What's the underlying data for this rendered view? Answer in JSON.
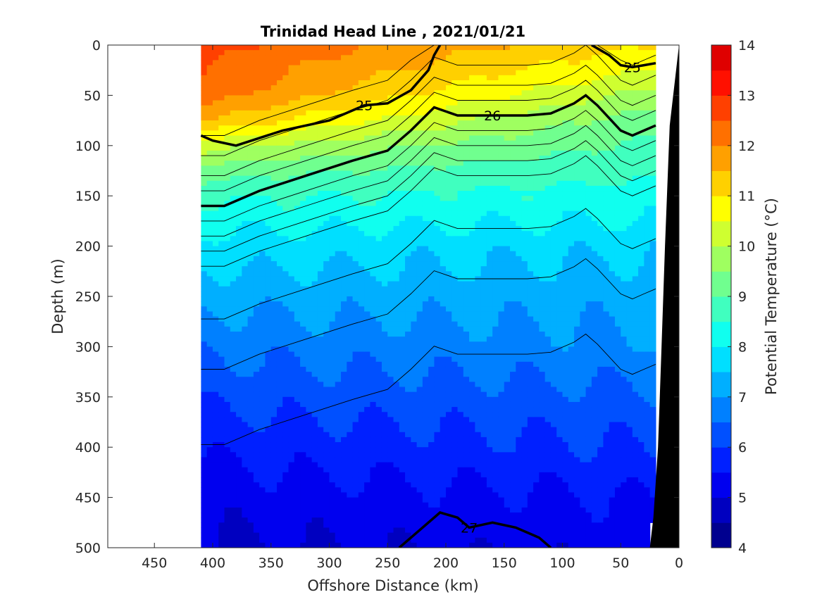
{
  "chart_data": {
    "type": "heatmap",
    "title": "Trinidad Head Line , 2021/01/21",
    "xlabel": "Offshore Distance (km)",
    "ylabel": "Depth (m)",
    "colorbar_label": "Potential Temperature (°C)",
    "xlim": [
      490,
      0
    ],
    "ylim": [
      0,
      500
    ],
    "x_reversed": true,
    "y_reversed": true,
    "x_ticks": [
      450,
      400,
      350,
      300,
      250,
      200,
      150,
      100,
      50,
      0
    ],
    "y_ticks": [
      0,
      50,
      100,
      150,
      200,
      250,
      300,
      350,
      400,
      450,
      500
    ],
    "colorbar": {
      "range": [
        4,
        14
      ],
      "ticks": [
        4,
        5,
        6,
        7,
        8,
        9,
        10,
        11,
        12,
        13,
        14
      ],
      "levels": [
        4,
        4.5,
        5,
        5.5,
        6,
        6.5,
        7,
        7.5,
        8,
        8.5,
        9,
        9.5,
        10,
        10.5,
        11,
        11.5,
        12,
        12.5,
        13,
        13.5,
        14
      ],
      "colors": [
        "#00008F",
        "#0000C0",
        "#0000EF",
        "#0020FF",
        "#0050FF",
        "#0080FF",
        "#00AFFF",
        "#00DFFF",
        "#10FFEF",
        "#40FFBF",
        "#70FF8F",
        "#9FFF60",
        "#CFFF30",
        "#FFFF00",
        "#FFD000",
        "#FFA000",
        "#FF7000",
        "#FF4000",
        "#FF1000",
        "#DF0000",
        "#AF0000"
      ]
    },
    "data_extent_km": [
      410,
      20
    ],
    "temperature_profile": {
      "depth_m": [
        0,
        25,
        50,
        75,
        100,
        125,
        150,
        175,
        200,
        250,
        300,
        350,
        400,
        450,
        500
      ],
      "nearshore_degC": [
        11.0,
        10.5,
        9.8,
        9.2,
        8.9,
        8.6,
        8.3,
        8.0,
        7.6,
        7.2,
        6.9,
        6.4,
        6.0,
        5.5,
        5.2
      ],
      "offshore_degC": [
        12.8,
        12.6,
        12.4,
        11.6,
        10.3,
        9.3,
        8.6,
        8.2,
        7.8,
        7.2,
        6.6,
        6.1,
        5.6,
        5.2,
        4.9
      ]
    },
    "isopycnals": [
      {
        "label": "25",
        "x_km": [
          410,
          400,
          380,
          340,
          300,
          270,
          250,
          230,
          215,
          210,
          205
        ],
        "depth_m": [
          90,
          95,
          100,
          85,
          75,
          60,
          58,
          45,
          25,
          10,
          0
        ]
      },
      {
        "label": "25",
        "x_km": [
          75,
          60,
          50,
          40,
          30,
          20
        ],
        "depth_m": [
          0,
          10,
          20,
          22,
          20,
          18
        ]
      },
      {
        "label": "26",
        "x_km": [
          410,
          390,
          360,
          320,
          280,
          250,
          230,
          210,
          190,
          160,
          130,
          110,
          90,
          80,
          70,
          50,
          40,
          30,
          20
        ],
        "depth_m": [
          160,
          160,
          145,
          130,
          115,
          105,
          85,
          62,
          70,
          70,
          70,
          68,
          58,
          50,
          60,
          85,
          90,
          85,
          80
        ]
      },
      {
        "label": "27",
        "x_km": [
          240,
          220,
          205,
          190,
          180,
          160,
          140,
          120,
          110
        ],
        "depth_m": [
          500,
          480,
          465,
          470,
          480,
          475,
          480,
          490,
          500
        ]
      }
    ],
    "bathymetry": {
      "x_km": [
        0,
        8,
        12,
        15,
        18,
        22,
        25
      ],
      "depth_m": [
        0,
        80,
        200,
        300,
        400,
        470,
        500
      ]
    }
  }
}
